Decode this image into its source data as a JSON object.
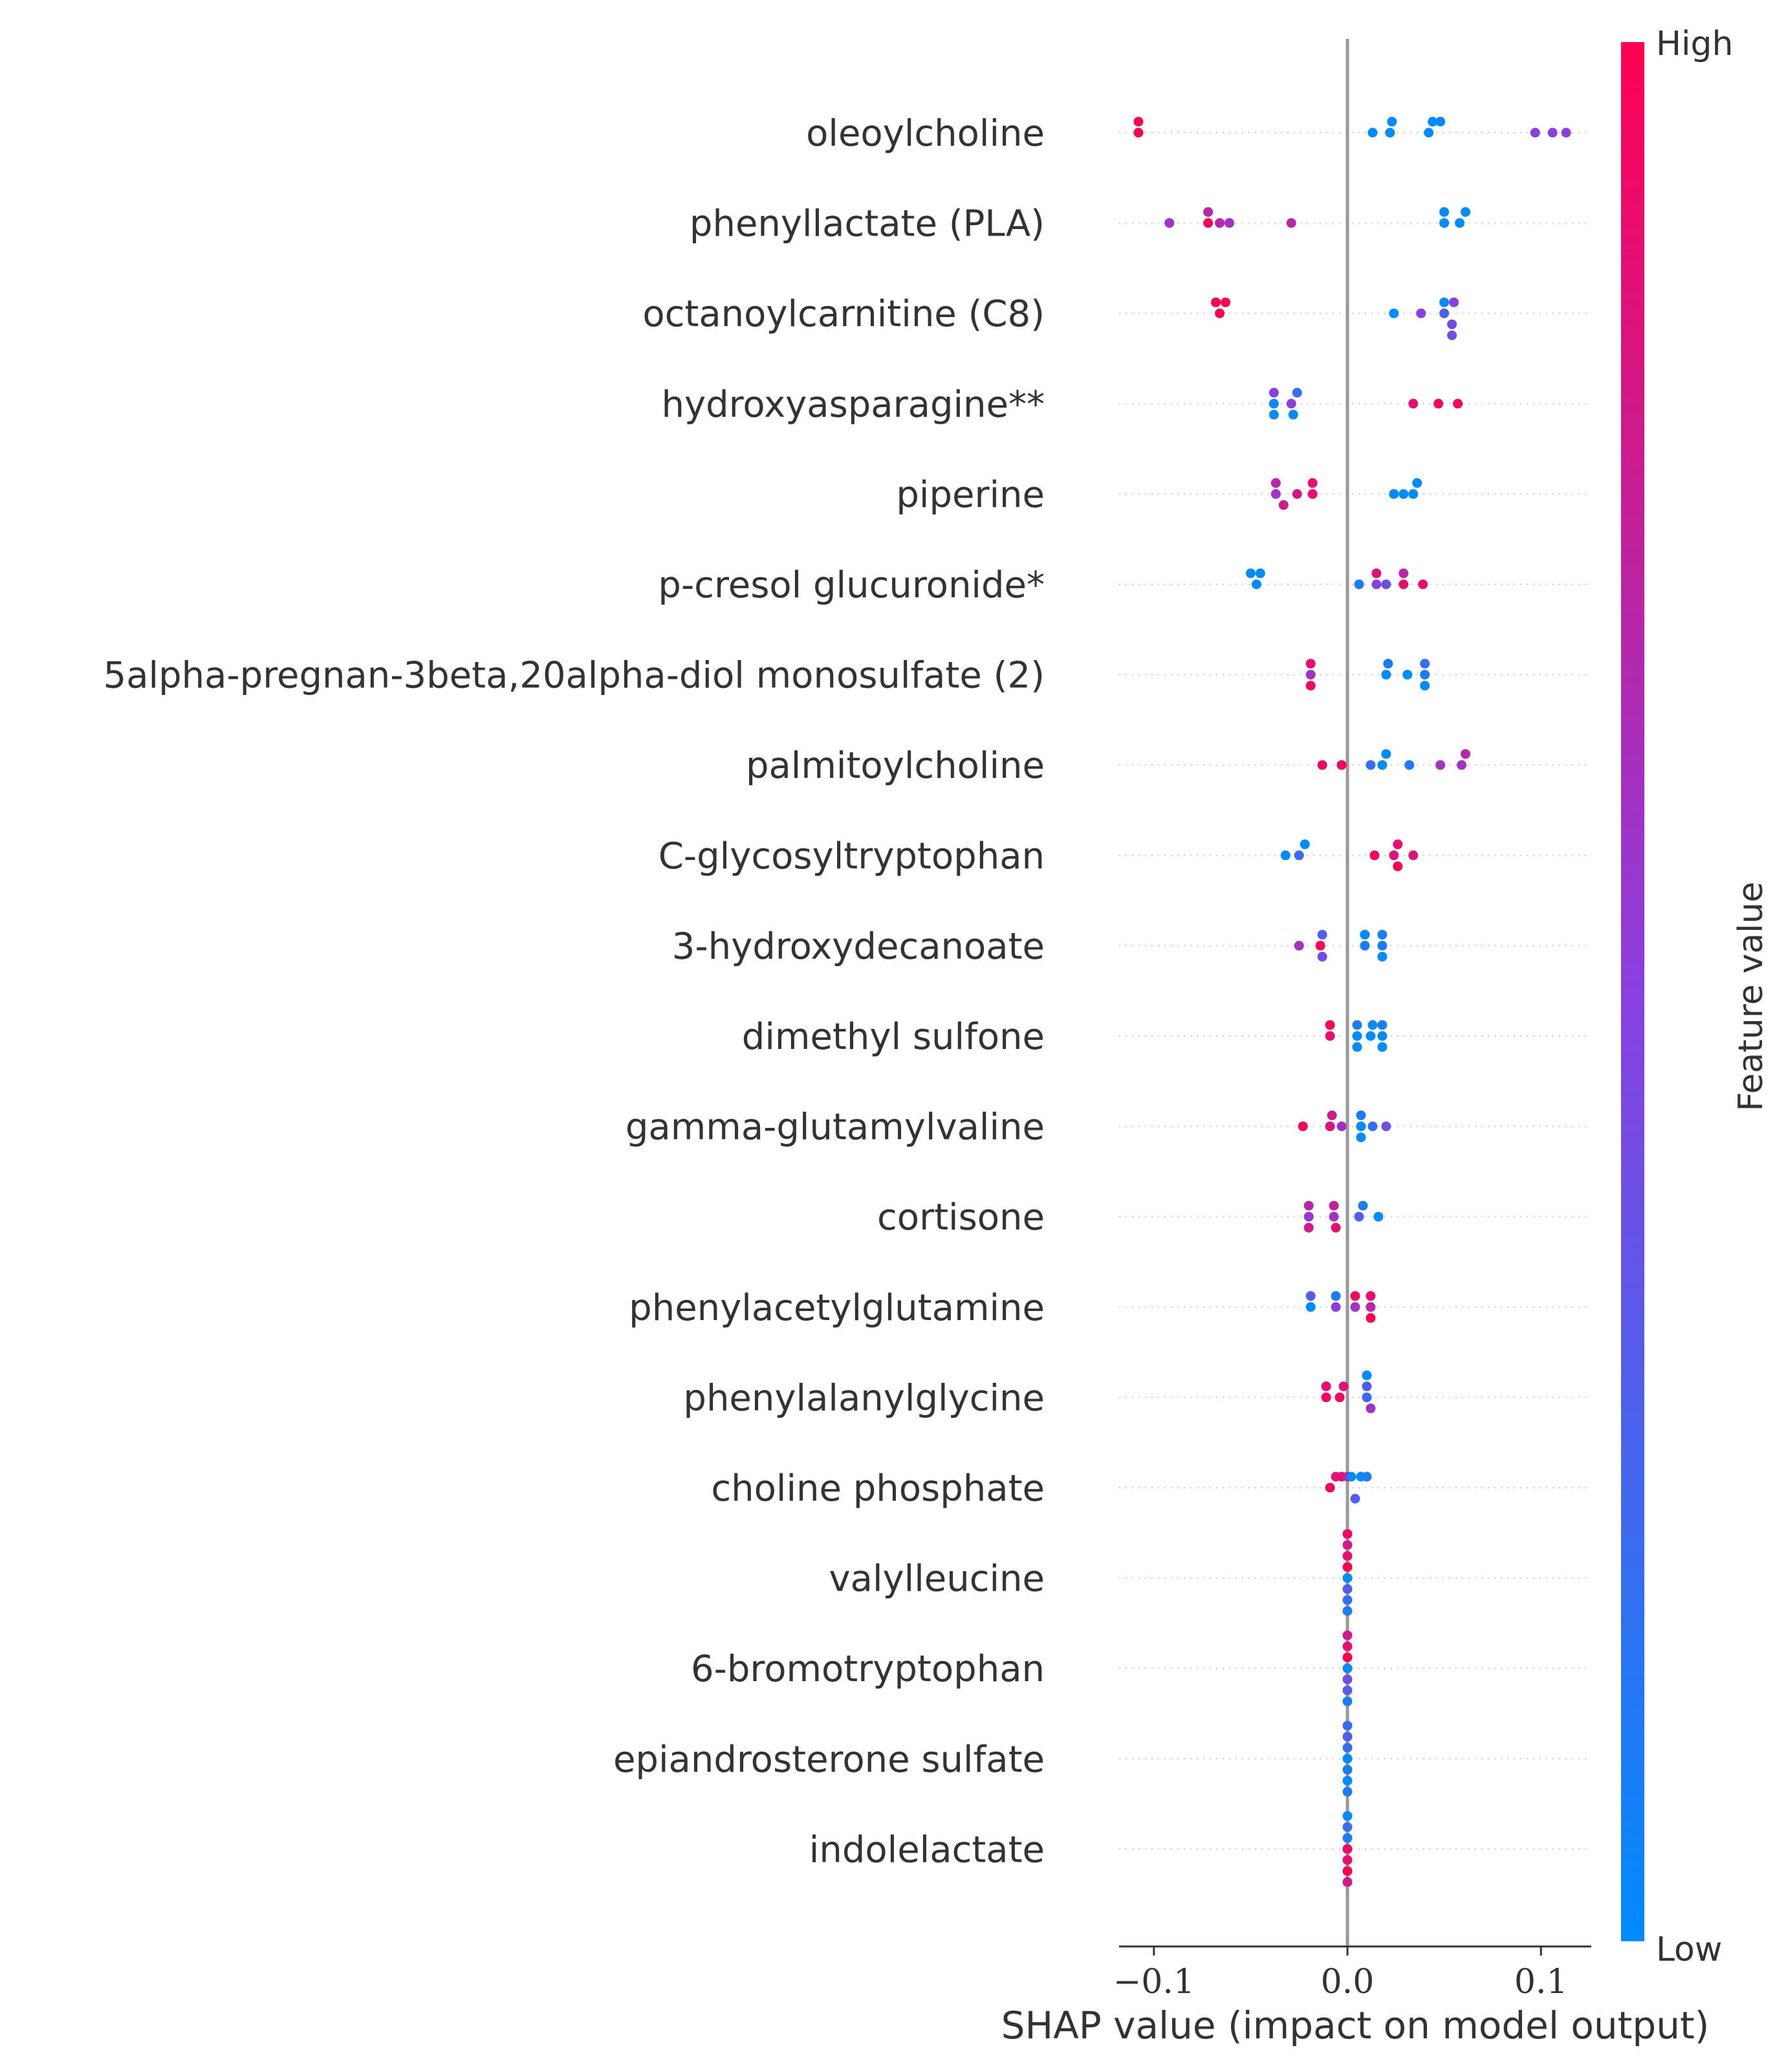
{
  "chart_data": {
    "type": "scatter",
    "subtype": "shap-beeswarm",
    "xlabel": "SHAP value (impact on model output)",
    "xlim": [
      -0.118,
      0.126
    ],
    "xticks": [
      {
        "value": -0.1,
        "label": "−0.1"
      },
      {
        "value": 0.0,
        "label": "0.0"
      },
      {
        "value": 0.1,
        "label": "0.1"
      }
    ],
    "zero_line": true,
    "colorbar": {
      "title": "Feature value",
      "high_label": "High",
      "low_label": "Low",
      "high_color": "#ff0051",
      "low_color": "#008bfb"
    },
    "features": [
      {
        "name": "oleoylcholine",
        "points": [
          [
            -0.108,
            1.0
          ],
          [
            -0.108,
            1.0
          ],
          [
            0.013,
            0.0
          ],
          [
            0.022,
            0.0
          ],
          [
            0.023,
            0.0
          ],
          [
            0.042,
            0.0
          ],
          [
            0.044,
            0.0
          ],
          [
            0.048,
            0.0
          ],
          [
            0.097,
            0.5
          ],
          [
            0.106,
            0.5
          ],
          [
            0.113,
            0.5
          ]
        ]
      },
      {
        "name": "phenyllactate (PLA)",
        "points": [
          [
            -0.092,
            0.6
          ],
          [
            -0.072,
            0.95
          ],
          [
            -0.072,
            0.7
          ],
          [
            -0.066,
            0.7
          ],
          [
            -0.061,
            0.6
          ],
          [
            -0.029,
            0.7
          ],
          [
            0.05,
            0.0
          ],
          [
            0.05,
            0.0
          ],
          [
            0.058,
            0.0
          ],
          [
            0.061,
            0.0
          ]
        ]
      },
      {
        "name": "octanoylcarnitine (C8)",
        "points": [
          [
            -0.066,
            1.0
          ],
          [
            -0.068,
            1.0
          ],
          [
            -0.063,
            1.0
          ],
          [
            0.024,
            0.0
          ],
          [
            0.038,
            0.5
          ],
          [
            0.05,
            0.3
          ],
          [
            0.05,
            0.0
          ],
          [
            0.054,
            0.4
          ],
          [
            0.055,
            0.5
          ],
          [
            0.054,
            0.4
          ]
        ]
      },
      {
        "name": "hydroxyasparagine**",
        "points": [
          [
            -0.038,
            0.0
          ],
          [
            -0.038,
            0.5
          ],
          [
            -0.038,
            0.0
          ],
          [
            -0.029,
            0.5
          ],
          [
            -0.026,
            0.2
          ],
          [
            -0.028,
            0.0
          ],
          [
            0.034,
            0.9
          ],
          [
            0.047,
            0.95
          ],
          [
            0.057,
            0.95
          ]
        ]
      },
      {
        "name": "piperine",
        "points": [
          [
            -0.037,
            0.6
          ],
          [
            -0.037,
            0.7
          ],
          [
            -0.033,
            0.8
          ],
          [
            -0.026,
            0.8
          ],
          [
            -0.018,
            0.9
          ],
          [
            -0.018,
            0.9
          ],
          [
            0.024,
            0.0
          ],
          [
            0.029,
            0.0
          ],
          [
            0.034,
            0.0
          ],
          [
            0.036,
            0.0
          ]
        ]
      },
      {
        "name": "p-cresol glucuronide*",
        "points": [
          [
            -0.047,
            0.0
          ],
          [
            -0.05,
            0.0
          ],
          [
            -0.045,
            0.0
          ],
          [
            0.006,
            0.1
          ],
          [
            0.015,
            0.5
          ],
          [
            0.015,
            0.85
          ],
          [
            0.02,
            0.4
          ],
          [
            0.029,
            0.9
          ],
          [
            0.029,
            0.7
          ],
          [
            0.039,
            0.9
          ]
        ]
      },
      {
        "name": "5alpha-pregnan-3beta,20alpha-diol monosulfate (2)",
        "points": [
          [
            -0.019,
            0.6
          ],
          [
            -0.019,
            0.9
          ],
          [
            -0.019,
            0.95
          ],
          [
            0.02,
            0.0
          ],
          [
            0.021,
            0.1
          ],
          [
            0.031,
            0.0
          ],
          [
            0.04,
            0.1
          ],
          [
            0.04,
            0.2
          ],
          [
            0.04,
            0.0
          ]
        ]
      },
      {
        "name": "palmitoylcholine",
        "points": [
          [
            -0.013,
            0.95
          ],
          [
            -0.003,
            0.95
          ],
          [
            0.012,
            0.2
          ],
          [
            0.018,
            0.0
          ],
          [
            0.02,
            0.0
          ],
          [
            0.032,
            0.1
          ],
          [
            0.048,
            0.6
          ],
          [
            0.059,
            0.6
          ],
          [
            0.061,
            0.7
          ]
        ]
      },
      {
        "name": "C-glycosyltryptophan",
        "points": [
          [
            -0.032,
            0.0
          ],
          [
            -0.025,
            0.2
          ],
          [
            -0.022,
            0.0
          ],
          [
            0.014,
            0.95
          ],
          [
            0.024,
            0.85
          ],
          [
            0.026,
            0.9
          ],
          [
            0.026,
            1.0
          ],
          [
            0.034,
            0.85
          ]
        ]
      },
      {
        "name": "3-hydroxydecanoate",
        "points": [
          [
            -0.025,
            0.6
          ],
          [
            -0.014,
            0.95
          ],
          [
            -0.013,
            0.3
          ],
          [
            -0.013,
            0.4
          ],
          [
            0.009,
            0.1
          ],
          [
            0.009,
            0.0
          ],
          [
            0.018,
            0.1
          ],
          [
            0.018,
            0.1
          ],
          [
            0.018,
            0.0
          ]
        ]
      },
      {
        "name": "dimethyl sulfone",
        "points": [
          [
            -0.009,
            0.9
          ],
          [
            -0.009,
            1.0
          ],
          [
            0.005,
            0.0
          ],
          [
            0.005,
            0.1
          ],
          [
            0.005,
            0.0
          ],
          [
            0.012,
            0.0
          ],
          [
            0.013,
            0.0
          ],
          [
            0.018,
            0.0
          ],
          [
            0.018,
            0.1
          ],
          [
            0.018,
            0.0
          ]
        ]
      },
      {
        "name": "gamma-glutamylvaline",
        "points": [
          [
            -0.023,
            0.95
          ],
          [
            -0.009,
            0.85
          ],
          [
            -0.008,
            0.8
          ],
          [
            -0.003,
            0.6
          ],
          [
            0.007,
            0.0
          ],
          [
            0.007,
            0.1
          ],
          [
            0.007,
            0.0
          ],
          [
            0.013,
            0.2
          ],
          [
            0.02,
            0.4
          ]
        ]
      },
      {
        "name": "cortisone",
        "points": [
          [
            -0.02,
            0.55
          ],
          [
            -0.02,
            0.7
          ],
          [
            -0.02,
            0.8
          ],
          [
            -0.007,
            0.6
          ],
          [
            -0.007,
            0.75
          ],
          [
            -0.006,
            0.9
          ],
          [
            0.006,
            0.3
          ],
          [
            0.008,
            0.1
          ],
          [
            0.016,
            0.0
          ]
        ]
      },
      {
        "name": "phenylacetylglutamine",
        "points": [
          [
            -0.019,
            0.0
          ],
          [
            -0.019,
            0.3
          ],
          [
            -0.006,
            0.5
          ],
          [
            -0.006,
            0.1
          ],
          [
            0.004,
            0.6
          ],
          [
            0.004,
            0.95
          ],
          [
            0.012,
            0.7
          ],
          [
            0.012,
            0.9
          ],
          [
            0.012,
            1.0
          ]
        ]
      },
      {
        "name": "phenylalanylglycine",
        "points": [
          [
            -0.011,
            0.95
          ],
          [
            -0.011,
            0.9
          ],
          [
            -0.004,
            0.95
          ],
          [
            -0.002,
            0.85
          ],
          [
            0.01,
            0.2
          ],
          [
            0.01,
            0.3
          ],
          [
            0.012,
            0.6
          ],
          [
            0.01,
            0.0
          ]
        ]
      },
      {
        "name": "choline phosphate",
        "points": [
          [
            -0.009,
            0.95
          ],
          [
            -0.006,
            0.85
          ],
          [
            -0.003,
            0.9
          ],
          [
            0.0,
            0.7
          ],
          [
            0.002,
            0.0
          ],
          [
            0.004,
            0.3
          ],
          [
            0.007,
            0.0
          ],
          [
            0.01,
            0.1
          ]
        ]
      },
      {
        "name": "valylleucine",
        "points": [
          [
            0.0,
            0.0
          ],
          [
            0.0,
            1.0
          ],
          [
            0.0,
            0.3
          ],
          [
            0.0,
            0.9
          ],
          [
            0.0,
            0.2
          ],
          [
            0.0,
            0.8
          ],
          [
            0.0,
            0.1
          ],
          [
            0.0,
            0.95
          ]
        ]
      },
      {
        "name": "6-bromotryptophan",
        "points": [
          [
            0.0,
            0.0
          ],
          [
            0.0,
            1.0
          ],
          [
            0.0,
            0.4
          ],
          [
            0.0,
            0.9
          ],
          [
            0.0,
            0.3
          ],
          [
            0.0,
            0.8
          ],
          [
            0.0,
            0.1
          ]
        ]
      },
      {
        "name": "epiandrosterone sulfate",
        "points": [
          [
            0.0,
            0.0
          ],
          [
            0.0,
            0.2
          ],
          [
            0.0,
            0.1
          ],
          [
            0.0,
            0.3
          ],
          [
            0.0,
            0.0
          ],
          [
            0.0,
            0.2
          ],
          [
            0.0,
            0.1
          ]
        ]
      },
      {
        "name": "indolelactate",
        "points": [
          [
            0.0,
            0.95
          ],
          [
            0.0,
            0.1
          ],
          [
            0.0,
            0.9
          ],
          [
            0.0,
            0.2
          ],
          [
            0.0,
            1.0
          ],
          [
            0.0,
            0.0
          ],
          [
            0.0,
            0.8
          ]
        ]
      }
    ]
  }
}
